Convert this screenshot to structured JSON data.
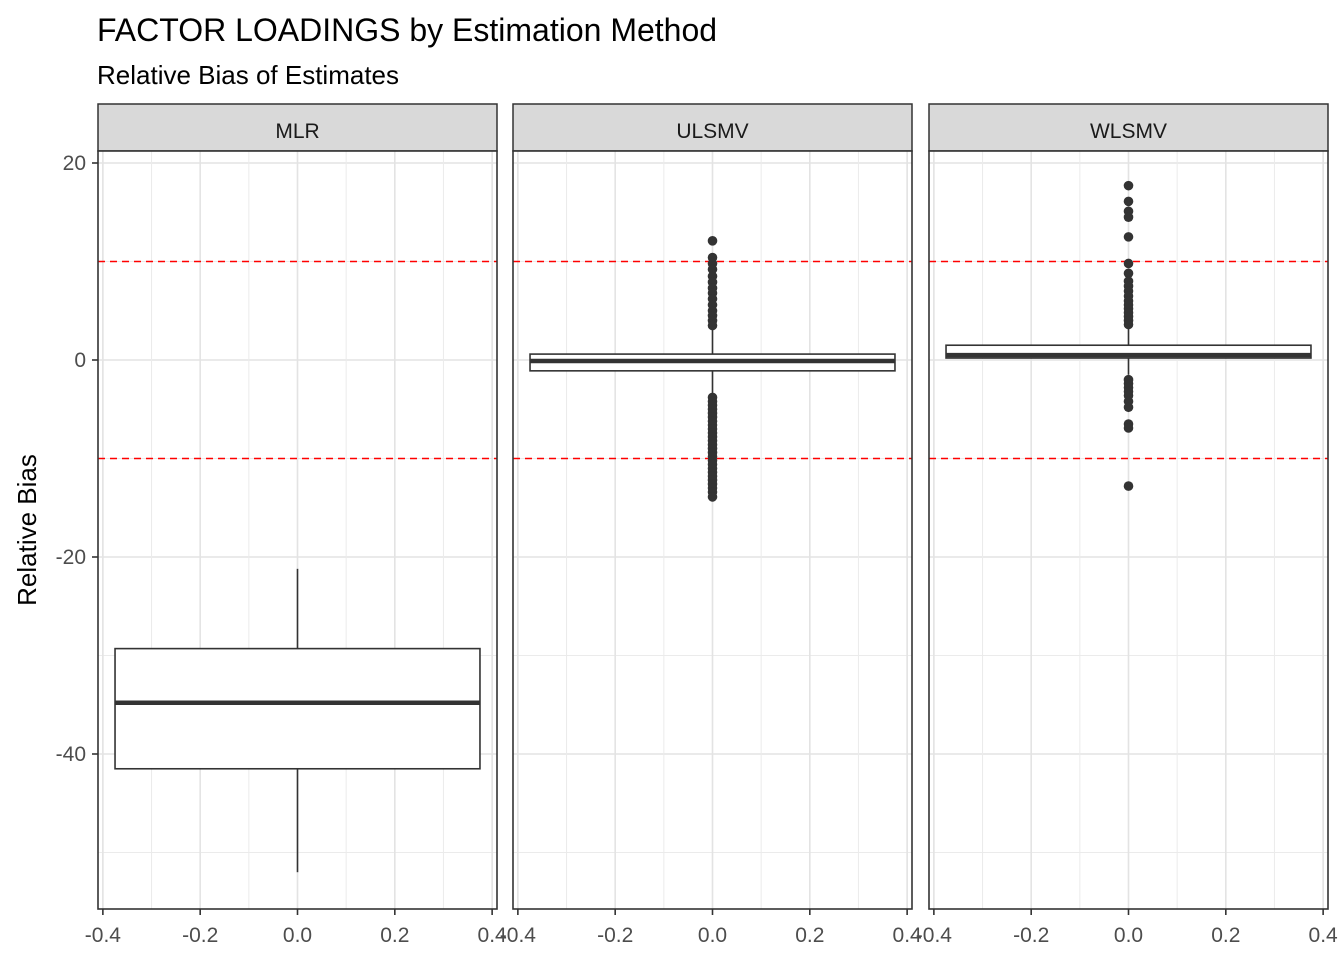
{
  "chart_data": {
    "type": "boxplot",
    "title": "FACTOR LOADINGS by Estimation Method",
    "subtitle": "Relative Bias of Estimates",
    "xlabel": "",
    "ylabel": "Relative Bias",
    "xlim": [
      -0.4,
      0.4
    ],
    "ylim": [
      -55,
      20
    ],
    "x_ticks": [
      -0.4,
      -0.2,
      0.0,
      0.2,
      0.4
    ],
    "x_tick_labels": [
      "-0.4",
      "-0.2",
      "0.0",
      "0.2",
      "0.4"
    ],
    "y_ticks": [
      -40,
      -20,
      0,
      20
    ],
    "y_tick_labels": [
      "-40",
      "-20",
      "0",
      "20"
    ],
    "reference_lines": [
      10,
      -10
    ],
    "reference_line_color": "#ff0000",
    "grid": true,
    "box_x_range": [
      -0.375,
      0.375
    ],
    "colors": {
      "box_fill": "#ffffff",
      "box_stroke": "#333333",
      "strip_fill": "#d9d9d9",
      "outlier": "#333333"
    },
    "panels": [
      {
        "label": "MLR",
        "lower_whisker": -52,
        "q1": -41.5,
        "median": -34.8,
        "q3": -29.3,
        "upper_whisker": -21.2,
        "outliers": []
      },
      {
        "label": "ULSMV",
        "lower_whisker": -3.6,
        "q1": -1.1,
        "median": -0.1,
        "q3": 0.6,
        "upper_whisker": 3.2,
        "outliers": [
          12.1,
          10.4,
          9.8,
          9.2,
          8.5,
          7.9,
          7.3,
          6.8,
          6.2,
          5.6,
          5.0,
          4.5,
          4.0,
          3.5,
          -3.8,
          -4.2,
          -4.6,
          -5.0,
          -5.4,
          -5.8,
          -6.2,
          -6.6,
          -7.0,
          -7.4,
          -7.8,
          -8.2,
          -8.6,
          -9.0,
          -9.4,
          -9.8,
          -10.2,
          -10.6,
          -11.0,
          -11.4,
          -11.8,
          -12.2,
          -12.6,
          -13.0,
          -13.4,
          -13.9
        ]
      },
      {
        "label": "WLSMV",
        "lower_whisker": -1.5,
        "q1": 0.2,
        "median": 0.5,
        "q3": 1.5,
        "upper_whisker": 3.3,
        "outliers": [
          17.7,
          16.1,
          15.1,
          14.5,
          12.5,
          9.8,
          8.8,
          8.0,
          7.5,
          7.0,
          6.5,
          6.0,
          5.6,
          5.2,
          4.8,
          4.4,
          4.0,
          3.6,
          -2.0,
          -2.4,
          -2.8,
          -3.2,
          -3.6,
          -4.2,
          -4.8,
          -6.5,
          -6.9,
          -12.8
        ]
      }
    ]
  }
}
